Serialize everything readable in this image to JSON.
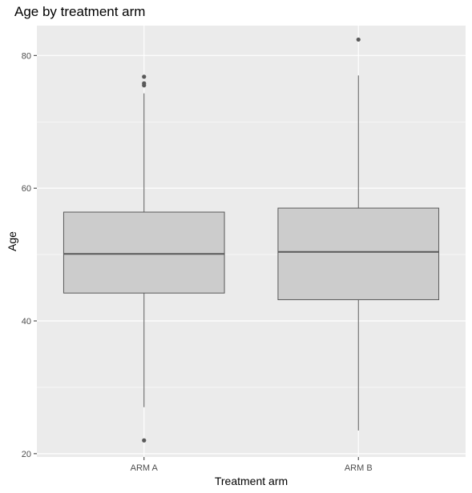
{
  "chart_data": {
    "type": "boxplot",
    "title": "Age by treatment arm",
    "xlabel": "Treatment arm",
    "ylabel": "Age",
    "ylim": [
      19.5,
      84.5
    ],
    "yticks": [
      20,
      40,
      60,
      80
    ],
    "categories": [
      "ARM A",
      "ARM B"
    ],
    "boxes": [
      {
        "category": "ARM A",
        "whisker_low": 27.0,
        "q1": 44.2,
        "median": 50.1,
        "q3": 56.4,
        "whisker_high": 74.3,
        "outliers": [
          22.0,
          75.5,
          75.8,
          76.8
        ]
      },
      {
        "category": "ARM B",
        "whisker_low": 23.5,
        "q1": 43.2,
        "median": 50.4,
        "q3": 57.0,
        "whisker_high": 77.0,
        "outliers": [
          82.4
        ]
      }
    ],
    "grid": true,
    "colors": {
      "panel": "#ebebeb",
      "grid": "#ffffff",
      "box_fill": "#cccccc",
      "box_stroke": "#595959",
      "outlier": "#595959"
    }
  }
}
